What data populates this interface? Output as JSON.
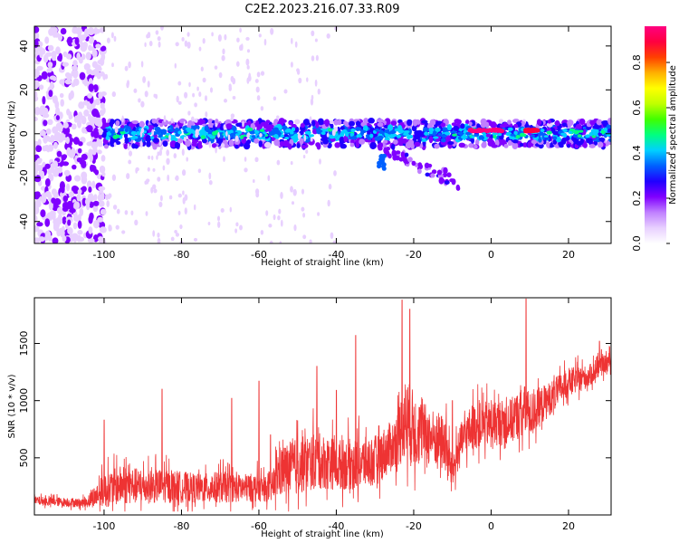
{
  "title": "C2E2.2023.216.07.33.R09",
  "chart_data": [
    {
      "type": "heatmap",
      "name": "spectrogram",
      "xlabel": "Height of straight line (km)",
      "ylabel": "Frequency (Hz)",
      "xlim": [
        -118,
        31
      ],
      "ylim": [
        -50,
        49
      ],
      "xticks": [
        -100,
        -80,
        -60,
        -40,
        -20,
        0,
        20
      ],
      "yticks": [
        -40,
        -20,
        0,
        20,
        40
      ],
      "colorbar": {
        "label": "Normalized spectral amplitude",
        "range": [
          0.0,
          0.96
        ],
        "ticks": [
          "0.0",
          "0.2",
          "0.4",
          "0.6",
          "0.8"
        ],
        "tick_values": [
          0.0,
          0.2,
          0.4,
          0.6,
          0.8
        ],
        "colors": [
          "#ffffff",
          "#e8d0ff",
          "#c080ff",
          "#8000ff",
          "#2000ff",
          "#0060ff",
          "#00d0ff",
          "#00ff80",
          "#40ff00",
          "#c0ff00",
          "#ffff00",
          "#ffb000",
          "#ff4000",
          "#ff0040",
          "#ff0080"
        ]
      },
      "features": [
        {
          "label": "main band",
          "x_range": [
            -100,
            31
          ],
          "freq_hz": 0,
          "amplitude": 0.4
        },
        {
          "label": "strong line",
          "x_range": [
            -6,
            3
          ],
          "freq_hz": 1.5,
          "amplitude": 0.95
        },
        {
          "label": "strong line",
          "x_range": [
            9,
            12
          ],
          "freq_hz": 1.5,
          "amplitude": 0.9
        },
        {
          "label": "scattered noise",
          "x_range": [
            -118,
            -100
          ],
          "freq_hz_range": [
            -50,
            49
          ],
          "amplitude": 0.15
        }
      ]
    },
    {
      "type": "line",
      "name": "snr",
      "xlabel": "Height of straight line (km)",
      "ylabel": "SNR (10 * v/v)",
      "xlim": [
        -118,
        31
      ],
      "ylim": [
        0,
        1900
      ],
      "xticks": [
        -100,
        -80,
        -60,
        -40,
        -20,
        0,
        20
      ],
      "yticks": [
        500,
        1000,
        1500
      ],
      "color": "#ee3333",
      "envelope": {
        "x": [
          -118,
          -105,
          -100,
          -95,
          -90,
          -85,
          -80,
          -75,
          -70,
          -65,
          -60,
          -57,
          -55,
          -50,
          -45,
          -40,
          -35,
          -30,
          -25,
          -22,
          -20,
          -18,
          -15,
          -12,
          -10,
          -8,
          -5,
          0,
          5,
          9,
          10,
          15,
          20,
          25,
          31
        ],
        "baseline": [
          120,
          100,
          200,
          250,
          230,
          240,
          230,
          220,
          230,
          220,
          230,
          200,
          350,
          400,
          450,
          420,
          420,
          450,
          600,
          800,
          700,
          700,
          650,
          600,
          350,
          600,
          750,
          780,
          800,
          900,
          850,
          1000,
          1150,
          1200,
          1350
        ],
        "spread": [
          80,
          80,
          300,
          350,
          300,
          300,
          280,
          250,
          280,
          250,
          250,
          200,
          450,
          500,
          500,
          450,
          450,
          450,
          450,
          750,
          700,
          550,
          500,
          500,
          300,
          350,
          400,
          400,
          400,
          450,
          400,
          300,
          250,
          200,
          150
        ],
        "peak_x": [
          -100,
          -85,
          -67,
          -60,
          -57,
          -45,
          -40,
          -35,
          -29,
          -23,
          -21,
          -10,
          -8,
          9,
          28
        ],
        "peak_y": [
          830,
          1100,
          1020,
          1170,
          700,
          1300,
          1090,
          1570,
          780,
          1880,
          1800,
          1000,
          600,
          1890,
          1520
        ]
      }
    }
  ]
}
